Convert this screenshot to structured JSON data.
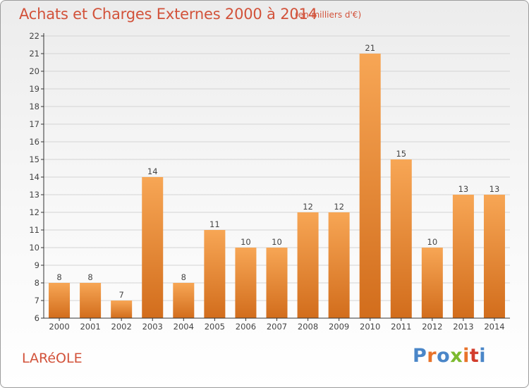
{
  "header": {
    "title": "Achats et Charges Externes 2000 à 2014",
    "unit": "(en milliers d'€)"
  },
  "footer": {
    "commune": "LARéOLE",
    "logo_text": "Proxiti",
    "logo_colors": [
      "#4a86c8",
      "#e8732a",
      "#4a86c8",
      "#7cba2f",
      "#e8732a",
      "#d23c2c",
      "#4a86c8"
    ]
  },
  "colors": {
    "bar_light": "#f7a655",
    "bar_dark": "#d26d1c",
    "axis": "#333333",
    "grid": "#d4d4d4",
    "title": "#d2523a"
  },
  "chart_data": {
    "type": "bar",
    "title": "Achats et Charges Externes 2000 à 2014",
    "subtitle": "(en milliers d'€)",
    "categories": [
      "2000",
      "2001",
      "2002",
      "2003",
      "2004",
      "2005",
      "2006",
      "2007",
      "2008",
      "2009",
      "2010",
      "2011",
      "2012",
      "2013",
      "2014"
    ],
    "values": [
      8,
      8,
      7,
      14,
      8,
      11,
      10,
      10,
      12,
      12,
      21,
      15,
      10,
      13,
      13
    ],
    "ylim": [
      6,
      22
    ],
    "yticks": [
      6,
      7,
      8,
      9,
      10,
      11,
      12,
      13,
      14,
      15,
      16,
      17,
      18,
      19,
      20,
      21,
      22
    ],
    "grid": true,
    "xlabel": "",
    "ylabel": ""
  }
}
